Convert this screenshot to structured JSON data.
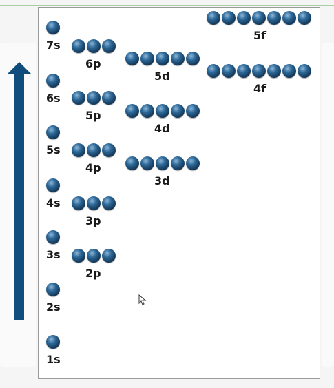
{
  "diagram": {
    "arrow_color": "#0f4e7c",
    "orbital_color": "#1c4b74",
    "sublevels": [
      {
        "id": "1s",
        "label": "1s",
        "orbitals": 1
      },
      {
        "id": "2s",
        "label": "2s",
        "orbitals": 1
      },
      {
        "id": "2p",
        "label": "2p",
        "orbitals": 3
      },
      {
        "id": "3s",
        "label": "3s",
        "orbitals": 1
      },
      {
        "id": "3p",
        "label": "3p",
        "orbitals": 3
      },
      {
        "id": "3d",
        "label": "3d",
        "orbitals": 5
      },
      {
        "id": "4s",
        "label": "4s",
        "orbitals": 1
      },
      {
        "id": "4p",
        "label": "4p",
        "orbitals": 3
      },
      {
        "id": "4d",
        "label": "4d",
        "orbitals": 5
      },
      {
        "id": "4f",
        "label": "4f",
        "orbitals": 7
      },
      {
        "id": "5s",
        "label": "5s",
        "orbitals": 1
      },
      {
        "id": "5p",
        "label": "5p",
        "orbitals": 3
      },
      {
        "id": "5d",
        "label": "5d",
        "orbitals": 5
      },
      {
        "id": "5f",
        "label": "5f",
        "orbitals": 7
      },
      {
        "id": "6s",
        "label": "6s",
        "orbitals": 1
      },
      {
        "id": "6p",
        "label": "6p",
        "orbitals": 3
      },
      {
        "id": "7s",
        "label": "7s",
        "orbitals": 1
      }
    ]
  }
}
